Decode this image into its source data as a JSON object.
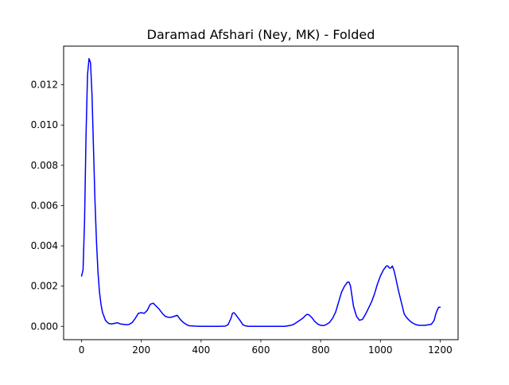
{
  "chart_data": {
    "type": "line",
    "title": "Daramad Afshari (Ney, MK) - Folded",
    "xlabel": "",
    "ylabel": "",
    "xlim": [
      -60,
      1260
    ],
    "ylim": [
      -0.00066,
      0.01392
    ],
    "grid": false,
    "x_ticks": [
      0,
      200,
      400,
      600,
      800,
      1000,
      1200
    ],
    "x_tick_labels": [
      "0",
      "200",
      "400",
      "600",
      "800",
      "1000",
      "1200"
    ],
    "y_ticks": [
      0.0,
      0.002,
      0.004,
      0.006,
      0.008,
      0.01,
      0.012
    ],
    "y_tick_labels": [
      "0.000",
      "0.002",
      "0.004",
      "0.006",
      "0.008",
      "0.010",
      "0.012"
    ],
    "series": [
      {
        "color": "#0000ff",
        "x": [
          0,
          5,
          10,
          15,
          20,
          25,
          30,
          35,
          40,
          45,
          50,
          55,
          60,
          65,
          70,
          80,
          90,
          100,
          110,
          120,
          130,
          140,
          150,
          160,
          170,
          180,
          190,
          200,
          210,
          220,
          230,
          240,
          250,
          260,
          270,
          280,
          290,
          300,
          310,
          320,
          330,
          340,
          350,
          360,
          380,
          400,
          420,
          440,
          460,
          480,
          490,
          500,
          505,
          510,
          515,
          520,
          530,
          540,
          550,
          560,
          580,
          600,
          620,
          640,
          660,
          680,
          700,
          710,
          720,
          730,
          740,
          750,
          755,
          760,
          770,
          780,
          790,
          800,
          810,
          820,
          830,
          840,
          850,
          860,
          870,
          880,
          890,
          895,
          900,
          905,
          910,
          920,
          930,
          940,
          950,
          960,
          970,
          980,
          990,
          1000,
          1010,
          1020,
          1025,
          1030,
          1035,
          1040,
          1045,
          1050,
          1060,
          1070,
          1080,
          1090,
          1100,
          1110,
          1120,
          1130,
          1140,
          1150,
          1160,
          1170,
          1180,
          1185,
          1190,
          1195,
          1200
        ],
        "y": [
          0.0025,
          0.0028,
          0.0052,
          0.0095,
          0.0125,
          0.0133,
          0.0131,
          0.0115,
          0.0088,
          0.0062,
          0.0042,
          0.0027,
          0.0017,
          0.0011,
          0.0007,
          0.0003,
          0.00015,
          0.00012,
          0.00015,
          0.00018,
          0.00012,
          0.0001,
          8e-05,
          0.0001,
          0.0002,
          0.0004,
          0.00065,
          0.00068,
          0.00065,
          0.0008,
          0.0011,
          0.00115,
          0.001,
          0.00085,
          0.00065,
          0.0005,
          0.00045,
          0.00045,
          0.0005,
          0.00055,
          0.00035,
          0.0002,
          0.0001,
          3e-05,
          1e-05,
          0.0,
          0.0,
          0.0,
          0.0,
          1e-05,
          8e-05,
          0.0004,
          0.00065,
          0.00068,
          0.0006,
          0.0005,
          0.0003,
          8e-05,
          2e-05,
          0.0,
          0.0,
          0.0,
          0.0,
          0.0,
          0.0,
          0.0,
          5e-05,
          0.0001,
          0.0002,
          0.0003,
          0.0004,
          0.00055,
          0.0006,
          0.00058,
          0.00045,
          0.00025,
          0.00012,
          5e-05,
          4e-05,
          0.0001,
          0.0002,
          0.0004,
          0.0007,
          0.0012,
          0.0017,
          0.002,
          0.0022,
          0.0022,
          0.002,
          0.0015,
          0.001,
          0.0005,
          0.0003,
          0.00035,
          0.0006,
          0.0009,
          0.0012,
          0.0016,
          0.0021,
          0.0025,
          0.0028,
          0.003,
          0.003,
          0.0029,
          0.0029,
          0.003,
          0.0028,
          0.0025,
          0.0018,
          0.0012,
          0.0006,
          0.0004,
          0.00025,
          0.00015,
          8e-05,
          5e-05,
          5e-05,
          5e-05,
          8e-05,
          0.0001,
          0.0003,
          0.0006,
          0.0008,
          0.00095,
          0.00095
        ]
      }
    ]
  }
}
